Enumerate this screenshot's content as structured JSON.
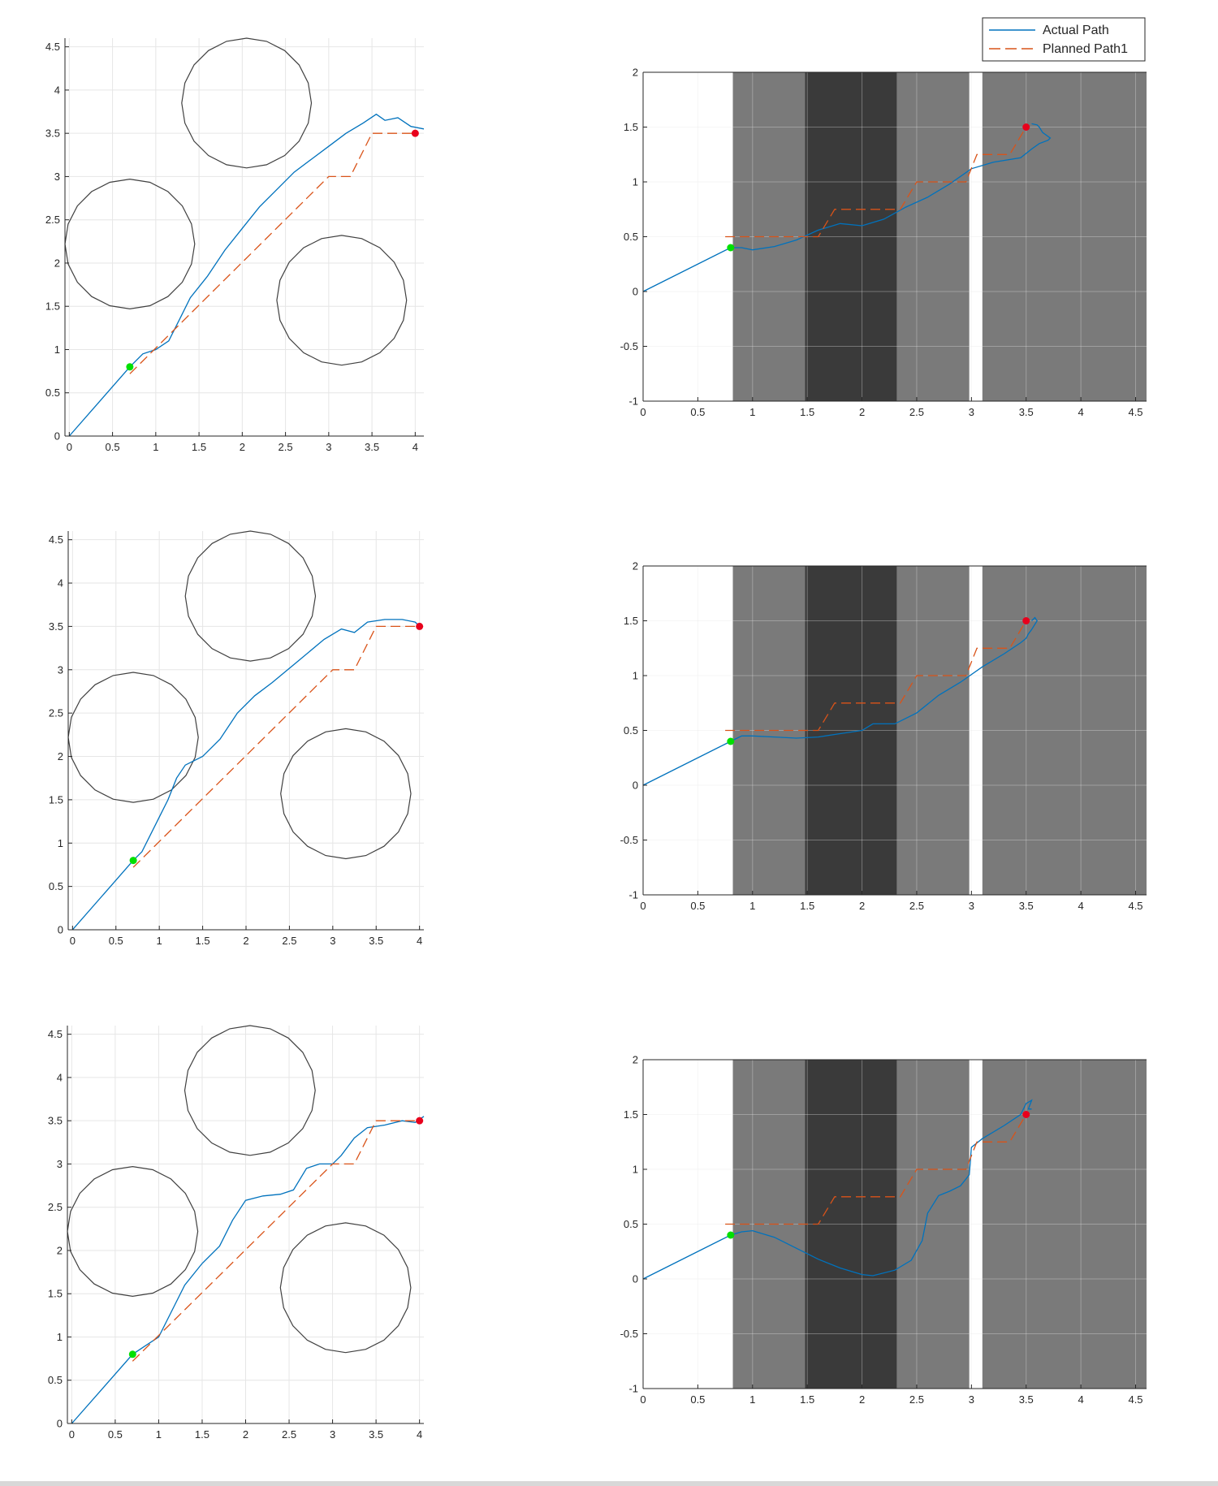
{
  "figure": {
    "legend": {
      "placement": "top-right",
      "entries": [
        {
          "label": "Actual Path",
          "style": "solid",
          "color": "#0072BD"
        },
        {
          "label": "Planned Path1",
          "style": "dashed",
          "color": "#D95319"
        }
      ]
    },
    "colors": {
      "actual_path": "#0072BD",
      "planned_path": "#D95319",
      "start_marker": "#00E000",
      "goal_marker": "#E8001C",
      "obstacle": "#404040",
      "band_medium": "#7A7A7A",
      "band_dark": "#3A3A3A",
      "grid": "#E6E6E6"
    }
  },
  "chart_data": [
    {
      "type": "line",
      "panel": "row1-left",
      "xlim": [
        -0.05,
        4.1
      ],
      "ylim": [
        0,
        4.6
      ],
      "xticks": [
        0,
        0.5,
        1,
        1.5,
        2,
        2.5,
        3,
        3.5,
        4
      ],
      "yticks": [
        0,
        0.5,
        1,
        1.5,
        2,
        2.5,
        3,
        3.5,
        4,
        4.5
      ],
      "grid": true,
      "obstacles": [
        {
          "cx": 2.05,
          "cy": 3.85,
          "r": 0.75
        },
        {
          "cx": 0.7,
          "cy": 2.22,
          "r": 0.75
        },
        {
          "cx": 3.15,
          "cy": 1.57,
          "r": 0.75
        }
      ],
      "start": [
        0.7,
        0.8
      ],
      "goal": [
        4.0,
        3.5
      ],
      "series": [
        {
          "role": "actual",
          "x": [
            0,
            0.7,
            0.85,
            1.0,
            1.15,
            1.3,
            1.4,
            1.6,
            1.8,
            2.0,
            2.2,
            2.4,
            2.6,
            2.8,
            3.0,
            3.2,
            3.4,
            3.55,
            3.65,
            3.8,
            3.95,
            4.1
          ],
          "y": [
            0,
            0.8,
            0.95,
            1.0,
            1.1,
            1.4,
            1.6,
            1.85,
            2.15,
            2.4,
            2.65,
            2.85,
            3.05,
            3.2,
            3.35,
            3.5,
            3.62,
            3.72,
            3.65,
            3.68,
            3.58,
            3.55
          ]
        },
        {
          "role": "planned",
          "x": [
            0.7,
            3.0,
            3.25,
            3.5,
            4.0
          ],
          "y": [
            0.72,
            3.0,
            3.0,
            3.5,
            3.5
          ]
        }
      ]
    },
    {
      "type": "line",
      "panel": "row1-right",
      "xlim": [
        0,
        4.6
      ],
      "ylim": [
        -1,
        2
      ],
      "xticks": [
        0,
        0.5,
        1,
        1.5,
        2,
        2.5,
        3,
        3.5,
        4,
        4.5
      ],
      "yticks": [
        -1,
        -0.5,
        0,
        0.5,
        1,
        1.5,
        2
      ],
      "grid": true,
      "bands": [
        {
          "x0": 0.82,
          "x1": 1.48,
          "shade": "medium"
        },
        {
          "x0": 1.48,
          "x1": 2.32,
          "shade": "dark"
        },
        {
          "x0": 2.32,
          "x1": 2.98,
          "shade": "medium"
        },
        {
          "x0": 3.1,
          "x1": 4.6,
          "shade": "medium"
        }
      ],
      "start": [
        0.8,
        0.4
      ],
      "goal": [
        3.5,
        1.5
      ],
      "series": [
        {
          "role": "actual",
          "x": [
            0,
            0.8,
            0.9,
            1.0,
            1.2,
            1.4,
            1.6,
            1.8,
            2.0,
            2.2,
            2.4,
            2.6,
            2.8,
            3.0,
            3.2,
            3.45,
            3.55,
            3.62,
            3.7,
            3.72,
            3.65,
            3.62,
            3.6,
            3.55
          ],
          "y": [
            0,
            0.4,
            0.4,
            0.38,
            0.41,
            0.47,
            0.56,
            0.62,
            0.6,
            0.66,
            0.77,
            0.86,
            0.98,
            1.12,
            1.18,
            1.22,
            1.3,
            1.35,
            1.38,
            1.4,
            1.45,
            1.5,
            1.52,
            1.53
          ]
        },
        {
          "role": "planned",
          "x": [
            0.75,
            1.6,
            1.75,
            2.35,
            2.5,
            2.95,
            3.05,
            3.35,
            3.5
          ],
          "y": [
            0.5,
            0.5,
            0.75,
            0.75,
            1.0,
            1.0,
            1.25,
            1.25,
            1.5
          ]
        }
      ]
    },
    {
      "type": "line",
      "panel": "row2-left",
      "xlim": [
        -0.05,
        4.05
      ],
      "ylim": [
        0,
        4.6
      ],
      "xticks": [
        0,
        0.5,
        1,
        1.5,
        2,
        2.5,
        3,
        3.5,
        4
      ],
      "yticks": [
        0,
        0.5,
        1,
        1.5,
        2,
        2.5,
        3,
        3.5,
        4,
        4.5
      ],
      "grid": true,
      "obstacles": [
        {
          "cx": 2.05,
          "cy": 3.85,
          "r": 0.75
        },
        {
          "cx": 0.7,
          "cy": 2.22,
          "r": 0.75
        },
        {
          "cx": 3.15,
          "cy": 1.57,
          "r": 0.75
        }
      ],
      "start": [
        0.7,
        0.8
      ],
      "goal": [
        4.0,
        3.5
      ],
      "series": [
        {
          "role": "actual",
          "x": [
            0,
            0.7,
            0.8,
            0.9,
            1.0,
            1.1,
            1.2,
            1.3,
            1.5,
            1.7,
            1.9,
            2.1,
            2.3,
            2.6,
            2.9,
            3.1,
            3.25,
            3.4,
            3.6,
            3.8,
            3.95,
            4.0
          ],
          "y": [
            0,
            0.8,
            0.9,
            1.1,
            1.3,
            1.5,
            1.75,
            1.9,
            2.0,
            2.2,
            2.5,
            2.7,
            2.85,
            3.1,
            3.35,
            3.47,
            3.43,
            3.55,
            3.58,
            3.58,
            3.55,
            3.5
          ]
        },
        {
          "role": "planned",
          "x": [
            0.7,
            3.0,
            3.25,
            3.5,
            4.0
          ],
          "y": [
            0.72,
            3.0,
            3.0,
            3.5,
            3.5
          ]
        }
      ]
    },
    {
      "type": "line",
      "panel": "row2-right",
      "xlim": [
        0,
        4.6
      ],
      "ylim": [
        -1,
        2
      ],
      "xticks": [
        0,
        0.5,
        1,
        1.5,
        2,
        2.5,
        3,
        3.5,
        4,
        4.5
      ],
      "yticks": [
        -1,
        -0.5,
        0,
        0.5,
        1,
        1.5,
        2
      ],
      "grid": true,
      "bands": [
        {
          "x0": 0.82,
          "x1": 1.48,
          "shade": "medium"
        },
        {
          "x0": 1.48,
          "x1": 2.32,
          "shade": "dark"
        },
        {
          "x0": 2.32,
          "x1": 2.98,
          "shade": "medium"
        },
        {
          "x0": 3.1,
          "x1": 4.6,
          "shade": "medium"
        }
      ],
      "start": [
        0.8,
        0.4
      ],
      "goal": [
        3.5,
        1.5
      ],
      "series": [
        {
          "role": "actual",
          "x": [
            0,
            0.8,
            0.9,
            1.0,
            1.2,
            1.4,
            1.6,
            1.8,
            2.0,
            2.1,
            2.3,
            2.5,
            2.7,
            2.9,
            3.1,
            3.3,
            3.45,
            3.5,
            3.52,
            3.55,
            3.6,
            3.58,
            3.55
          ],
          "y": [
            0,
            0.4,
            0.45,
            0.45,
            0.44,
            0.43,
            0.44,
            0.47,
            0.5,
            0.56,
            0.56,
            0.66,
            0.82,
            0.94,
            1.08,
            1.2,
            1.3,
            1.34,
            1.38,
            1.42,
            1.5,
            1.53,
            1.5
          ]
        },
        {
          "role": "planned",
          "x": [
            0.75,
            1.6,
            1.75,
            2.35,
            2.5,
            2.95,
            3.05,
            3.35,
            3.5
          ],
          "y": [
            0.5,
            0.5,
            0.75,
            0.75,
            1.0,
            1.0,
            1.25,
            1.25,
            1.5
          ]
        }
      ]
    },
    {
      "type": "line",
      "panel": "row3-left",
      "xlim": [
        -0.05,
        4.05
      ],
      "ylim": [
        0,
        4.6
      ],
      "xticks": [
        0,
        0.5,
        1,
        1.5,
        2,
        2.5,
        3,
        3.5,
        4
      ],
      "yticks": [
        0,
        0.5,
        1,
        1.5,
        2,
        2.5,
        3,
        3.5,
        4,
        4.5
      ],
      "grid": true,
      "obstacles": [
        {
          "cx": 2.05,
          "cy": 3.85,
          "r": 0.75
        },
        {
          "cx": 0.7,
          "cy": 2.22,
          "r": 0.75
        },
        {
          "cx": 3.15,
          "cy": 1.57,
          "r": 0.75
        }
      ],
      "start": [
        0.7,
        0.8
      ],
      "goal": [
        4.0,
        3.5
      ],
      "series": [
        {
          "role": "actual",
          "x": [
            0,
            0.7,
            0.85,
            1.0,
            1.15,
            1.3,
            1.5,
            1.7,
            1.85,
            2.0,
            2.2,
            2.4,
            2.55,
            2.7,
            2.85,
            3.0,
            3.1,
            3.25,
            3.4,
            3.6,
            3.8,
            3.95,
            4.05
          ],
          "y": [
            0,
            0.8,
            0.9,
            1.0,
            1.3,
            1.6,
            1.85,
            2.05,
            2.35,
            2.58,
            2.63,
            2.65,
            2.7,
            2.95,
            3.0,
            3.0,
            3.1,
            3.3,
            3.42,
            3.45,
            3.5,
            3.48,
            3.55
          ]
        },
        {
          "role": "planned",
          "x": [
            0.7,
            3.0,
            3.25,
            3.5,
            4.0
          ],
          "y": [
            0.72,
            3.0,
            3.0,
            3.5,
            3.5
          ]
        }
      ]
    },
    {
      "type": "line",
      "panel": "row3-right",
      "xlim": [
        0,
        4.6
      ],
      "ylim": [
        -1,
        2
      ],
      "xticks": [
        0,
        0.5,
        1,
        1.5,
        2,
        2.5,
        3,
        3.5,
        4,
        4.5
      ],
      "yticks": [
        -1,
        -0.5,
        0,
        0.5,
        1,
        1.5,
        2
      ],
      "grid": true,
      "bands": [
        {
          "x0": 0.82,
          "x1": 1.48,
          "shade": "medium"
        },
        {
          "x0": 1.48,
          "x1": 2.32,
          "shade": "dark"
        },
        {
          "x0": 2.32,
          "x1": 2.98,
          "shade": "medium"
        },
        {
          "x0": 3.1,
          "x1": 4.6,
          "shade": "medium"
        }
      ],
      "start": [
        0.8,
        0.4
      ],
      "goal": [
        3.5,
        1.5
      ],
      "series": [
        {
          "role": "actual",
          "x": [
            0,
            0.8,
            0.9,
            1.0,
            1.2,
            1.4,
            1.6,
            1.8,
            2.0,
            2.1,
            2.3,
            2.45,
            2.55,
            2.6,
            2.7,
            2.8,
            2.9,
            2.98,
            3.0,
            3.1,
            3.3,
            3.45,
            3.5,
            3.55,
            3.52,
            3.55
          ],
          "y": [
            0,
            0.4,
            0.43,
            0.44,
            0.38,
            0.28,
            0.18,
            0.1,
            0.04,
            0.03,
            0.08,
            0.17,
            0.35,
            0.6,
            0.76,
            0.8,
            0.85,
            0.95,
            1.2,
            1.28,
            1.4,
            1.5,
            1.6,
            1.63,
            1.55,
            1.55
          ]
        },
        {
          "role": "planned",
          "x": [
            0.75,
            1.6,
            1.75,
            2.35,
            2.5,
            2.95,
            3.05,
            3.35,
            3.5
          ],
          "y": [
            0.5,
            0.5,
            0.75,
            0.75,
            1.0,
            1.0,
            1.25,
            1.25,
            1.5
          ]
        }
      ]
    }
  ]
}
